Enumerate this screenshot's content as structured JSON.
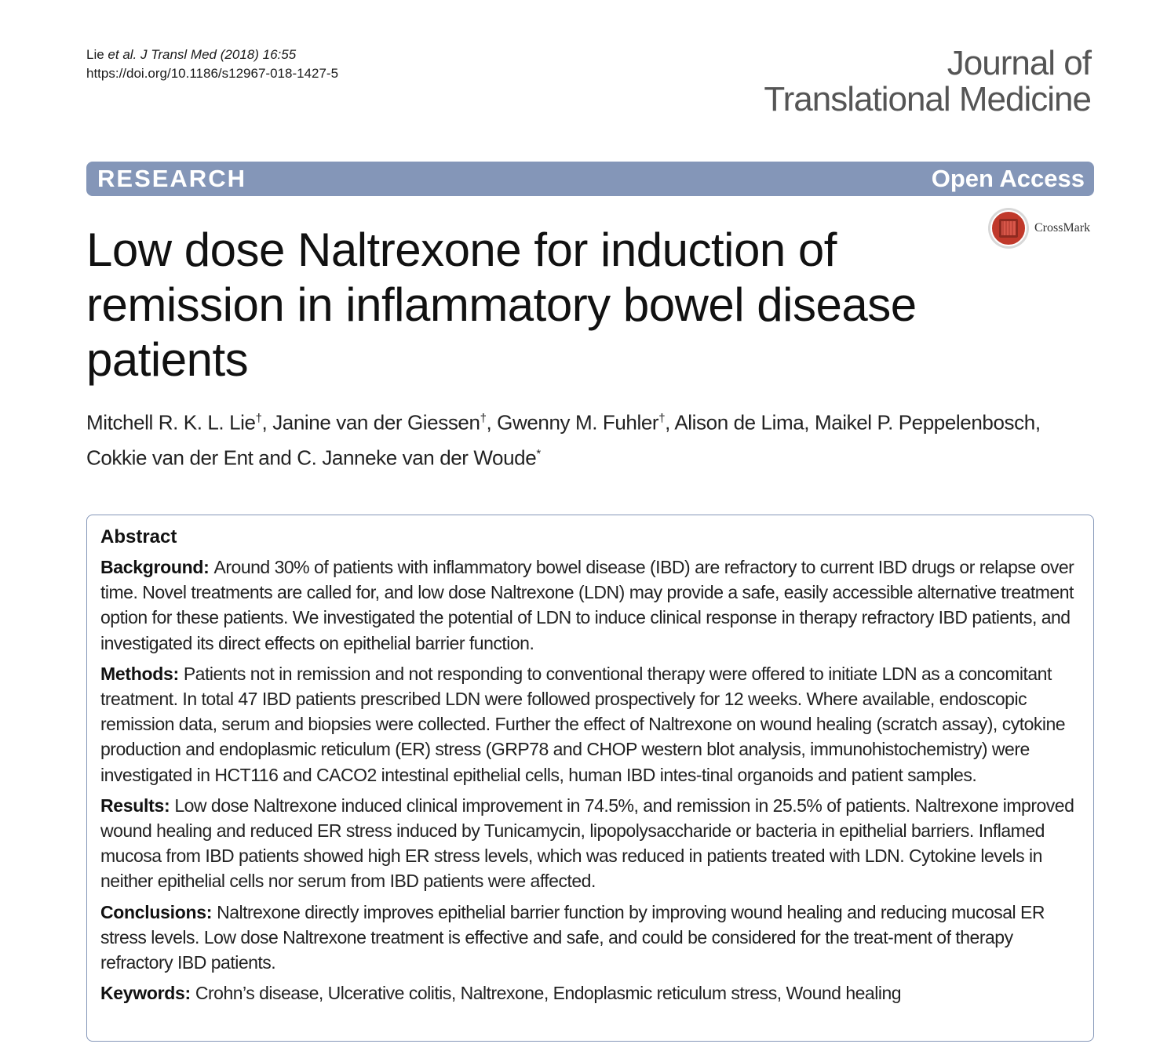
{
  "citation": {
    "author": "Lie",
    "etal": "et al.",
    "journal_abbrev": "J Transl Med",
    "year_vol": "(2018) 16:55",
    "doi": "https://doi.org/10.1186/s12967-018-1427-5"
  },
  "journal": {
    "line1": "Journal of",
    "line2": "Translational Medicine"
  },
  "banner": {
    "left": "RESEARCH",
    "right": "Open Access"
  },
  "crossmark": {
    "label": "CrossMark"
  },
  "title": "Low dose Naltrexone for induction of remission in inflammatory bowel disease patients",
  "authors": {
    "line1": [
      {
        "name": "Mitchell R. K. L. Lie",
        "mark": "†",
        "sep": ", "
      },
      {
        "name": "Janine van der Giessen",
        "mark": "†",
        "sep": ", "
      },
      {
        "name": "Gwenny M. Fuhler",
        "mark": "†",
        "sep": ", "
      },
      {
        "name": "Alison de Lima",
        "mark": "",
        "sep": ", "
      },
      {
        "name": "Maikel P. Peppelenbosch",
        "mark": "",
        "sep": ","
      }
    ],
    "line2": [
      {
        "name": "Cokkie van der Ent",
        "mark": "",
        "sep": " and "
      },
      {
        "name": "C. Janneke van der Woude",
        "mark": "*",
        "sep": ""
      }
    ]
  },
  "abstract": {
    "heading": "Abstract",
    "sections": [
      {
        "label": "Background:",
        "text": "Around 30% of patients with inflammatory bowel disease (IBD) are refractory to current IBD drugs or relapse over time. Novel treatments are called for, and low dose Naltrexone (LDN) may provide a safe, easily accessible alternative treatment option for these patients. We investigated the potential of LDN to induce clinical response in therapy refractory IBD patients, and investigated its direct effects on epithelial barrier function."
      },
      {
        "label": "Methods:",
        "text": "Patients not in remission and not responding to conventional therapy were offered to initiate LDN as a concomitant treatment. In total 47 IBD patients prescribed LDN were followed prospectively for 12 weeks. Where available, endoscopic remission data, serum and biopsies were collected. Further the effect of Naltrexone on wound healing (scratch assay), cytokine production and endoplasmic reticulum (ER) stress (GRP78 and CHOP western blot analysis, immunohistochemistry) were investigated in HCT116 and CACO2 intestinal epithelial cells, human IBD intes-tinal organoids and patient samples."
      },
      {
        "label": "Results:",
        "text": "Low dose Naltrexone induced clinical improvement in 74.5%, and remission in 25.5% of patients. Naltrexone improved wound healing and reduced ER stress induced by Tunicamycin, lipopolysaccharide or bacteria in epithelial barriers. Inflamed mucosa from IBD patients showed high ER stress levels, which was reduced in patients treated with LDN. Cytokine levels in neither epithelial cells nor serum from IBD patients were affected."
      },
      {
        "label": "Conclusions:",
        "text": "Naltrexone directly improves epithelial barrier function by improving wound healing and reducing mucosal ER stress levels. Low dose Naltrexone treatment is effective and safe, and could be considered for the treat-ment of therapy refractory IBD patients."
      },
      {
        "label": "Keywords:",
        "text": "Crohn’s disease, Ulcerative colitis, Naltrexone, Endoplasmic reticulum stress, Wound healing"
      }
    ]
  },
  "colors": {
    "banner": "#8496b8",
    "abstract_border": "#8496b8",
    "crossmark_red": "#c0392b"
  }
}
